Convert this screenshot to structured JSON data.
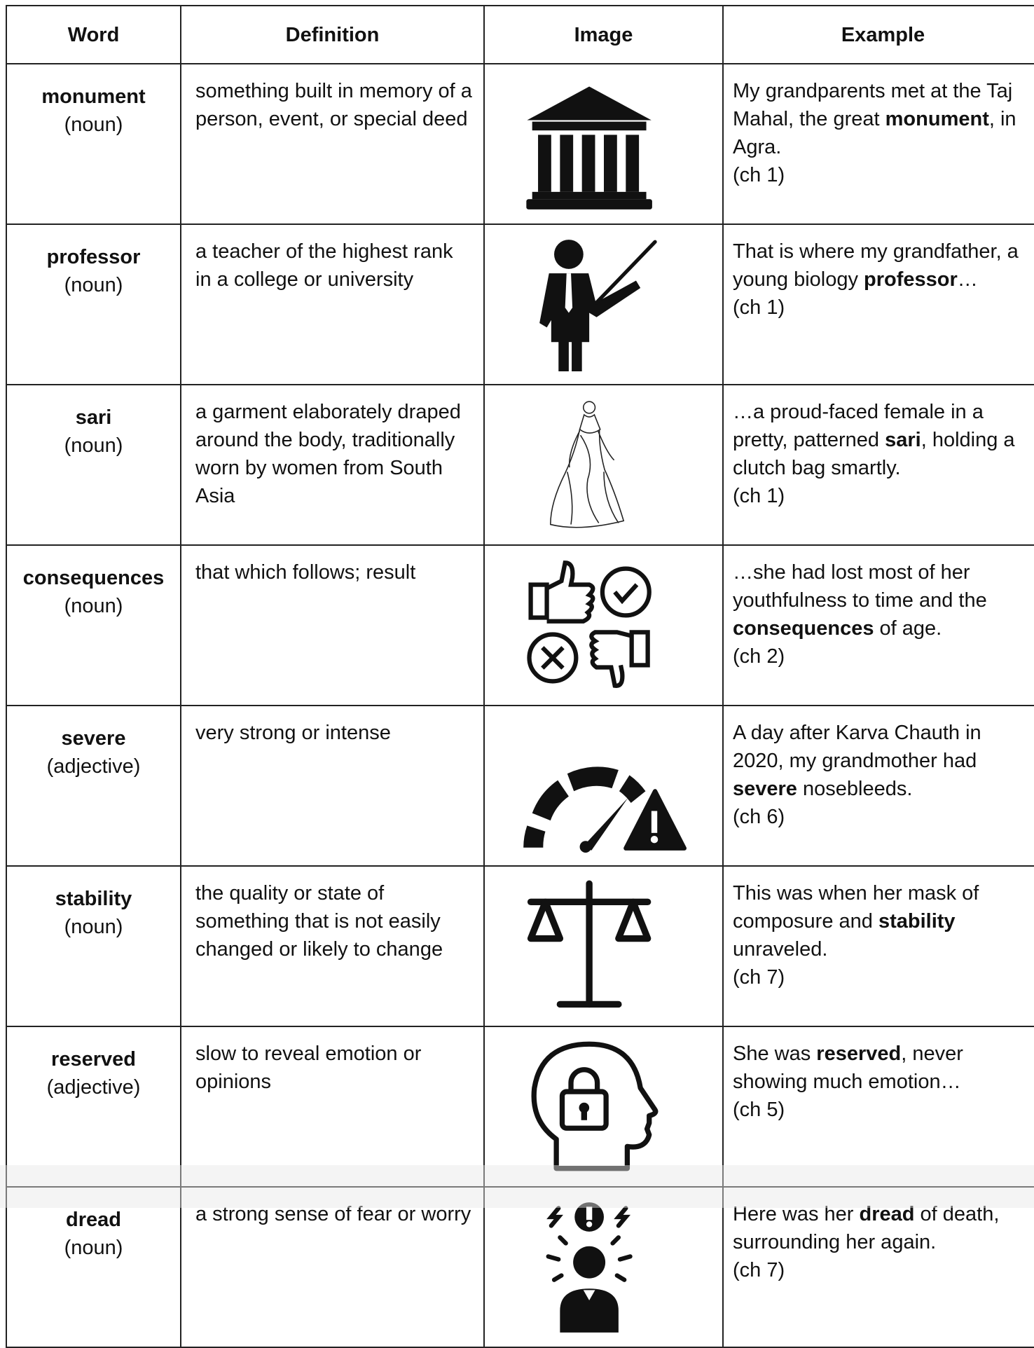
{
  "table": {
    "headers": [
      "Word",
      "Definition",
      "Image",
      "Example"
    ],
    "rows": [
      {
        "word": "monument",
        "pos": "(noun)",
        "definition": "something built in memory of a person, event, or special deed",
        "example": {
          "before": "My grandparents met at the Taj Mahal, the great ",
          "bold": "monument",
          "after": ", in Agra.",
          "chapter": "(ch 1)"
        }
      },
      {
        "word": "professor",
        "pos": "(noun)",
        "definition": "a teacher of the highest rank in a college or university",
        "example": {
          "before": "That is where my grandfather, a young biology ",
          "bold": "professor",
          "after": "…",
          "chapter": "(ch 1)"
        }
      },
      {
        "word": "sari",
        "pos": "(noun)",
        "definition": "a garment elaborately draped around the body, traditionally worn by women from South Asia",
        "example": {
          "before": "…a proud-faced female in a pretty, patterned ",
          "bold": "sari",
          "after": ", holding a clutch bag smartly.",
          "chapter": "(ch 1)"
        }
      },
      {
        "word": "consequences",
        "pos": "(noun)",
        "definition": "that which follows; result",
        "example": {
          "before": "…she had lost most of her youthfulness to time and the ",
          "bold": "consequences",
          "after": " of age.",
          "chapter": "(ch 2)"
        }
      },
      {
        "word": "severe",
        "pos": "(adjective)",
        "definition": "very strong or intense",
        "example": {
          "before": "A day after Karva Chauth in 2020, my grandmother had ",
          "bold": "severe",
          "after": " nosebleeds.",
          "chapter": "(ch 6)"
        }
      },
      {
        "word": "stability",
        "pos": "(noun)",
        "definition": "the quality or state of something that is not easily changed or likely to change",
        "example": {
          "before": "This was when her mask of composure and ",
          "bold": "stability",
          "after": " unraveled.",
          "chapter": "(ch 7)"
        }
      },
      {
        "word": "reserved",
        "pos": "(adjective)",
        "definition": "slow to reveal emotion or opinions",
        "example": {
          "before": "She was ",
          "bold": "reserved",
          "after": ", never showing much emotion…",
          "chapter": "(ch 5)"
        }
      },
      {
        "word": "dread",
        "pos": "(noun)",
        "definition": "a strong sense of fear or worry",
        "example": {
          "before": "Here was her ",
          "bold": "dread",
          "after": " of death, surrounding her again.",
          "chapter": "(ch 7)"
        }
      }
    ]
  }
}
